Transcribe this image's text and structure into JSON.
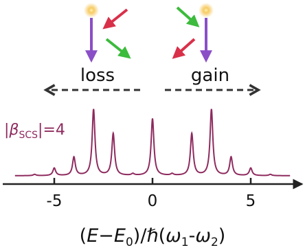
{
  "chart_data": {
    "type": "line",
    "xlabel": "(E−E0)/ℏ(ω1-ω2)",
    "xlabel_parts": {
      "open": "(",
      "E": "E",
      "minus": "−",
      "E0": "E",
      "E0_sub": "0",
      "close_slash": ")/",
      "hbar": "ℏ",
      "paren_open": "(",
      "omega1": "ω",
      "omega1_sub": "1",
      "dash": "-",
      "omega2": "ω",
      "omega2_sub": "2",
      "paren_close": ")"
    },
    "xlim": [
      -7.2,
      7.2
    ],
    "ylim": [
      0,
      1.0
    ],
    "xticks": [
      -5,
      0,
      5
    ],
    "xtick_labels": [
      "-5",
      "0",
      "5"
    ],
    "parameter_label": "|βSCS|=4",
    "parameter_parts": {
      "bar_left": "|",
      "beta": "β",
      "sub": "SCS",
      "rest": "|=4"
    },
    "line_color": "#8e2a5e",
    "baseline": 0.05,
    "linewidth_gamma": 0.085,
    "peaks": [
      {
        "x": -6,
        "height": 0.015
      },
      {
        "x": -5,
        "height": 0.09
      },
      {
        "x": -4,
        "height": 0.22
      },
      {
        "x": -3,
        "height": 0.79
      },
      {
        "x": -2,
        "height": 0.5
      },
      {
        "x": -1,
        "height": 0.02
      },
      {
        "x": 0,
        "height": 0.68
      },
      {
        "x": 1,
        "height": 0.02
      },
      {
        "x": 2,
        "height": 0.5
      },
      {
        "x": 3,
        "height": 0.79
      },
      {
        "x": 4,
        "height": 0.22
      },
      {
        "x": 5,
        "height": 0.09
      },
      {
        "x": 6,
        "height": 0.015
      }
    ],
    "annotations": {
      "loss_label": "loss",
      "gain_label": "gain"
    },
    "colors": {
      "purple_arrow": "#8a4fc7",
      "red_arrow": "#d9304a",
      "green_arrow": "#3dbb3d",
      "atom_glow": "#f5c24a",
      "axis": "#222222",
      "dashed_arrow": "#333333"
    }
  }
}
